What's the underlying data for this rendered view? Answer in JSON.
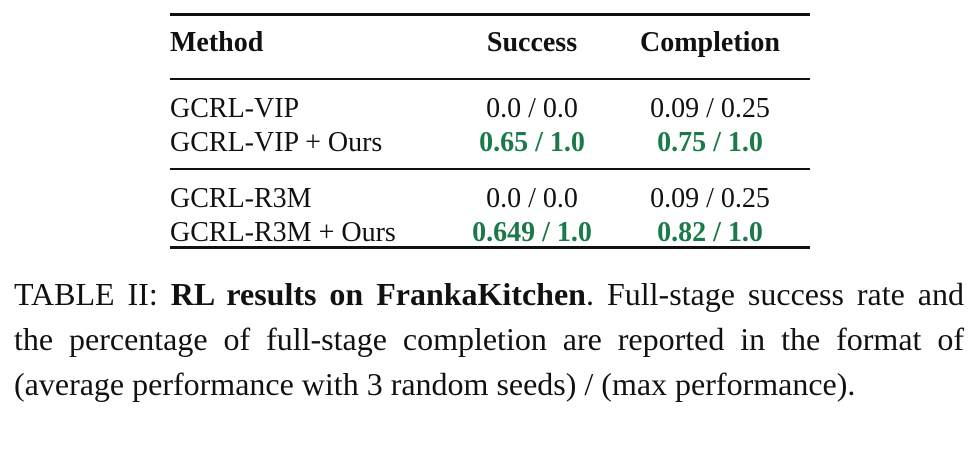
{
  "table": {
    "headers": {
      "method": "Method",
      "success": "Success",
      "completion": "Completion"
    },
    "rows": [
      {
        "method": "GCRL-VIP",
        "success": "0.0 / 0.0",
        "completion": "0.09 / 0.25",
        "best": false
      },
      {
        "method": "GCRL-VIP + Ours",
        "success": "0.65 / 1.0",
        "completion": "0.75 / 1.0",
        "best": true
      },
      {
        "method": "GCRL-R3M",
        "success": "0.0 / 0.0",
        "completion": "0.09 / 0.25",
        "best": false
      },
      {
        "method": "GCRL-R3M + Ours",
        "success": "0.649 / 1.0",
        "completion": "0.82 / 1.0",
        "best": true
      }
    ],
    "highlight_color": "#1c7a4a"
  },
  "caption": {
    "label": "TABLE II: ",
    "title": "RL results on FrankaKitchen",
    "body": ". Full-stage success rate and the percentage of full-stage completion are reported in the format of (average performance with 3 random seeds) / (max performance)."
  }
}
